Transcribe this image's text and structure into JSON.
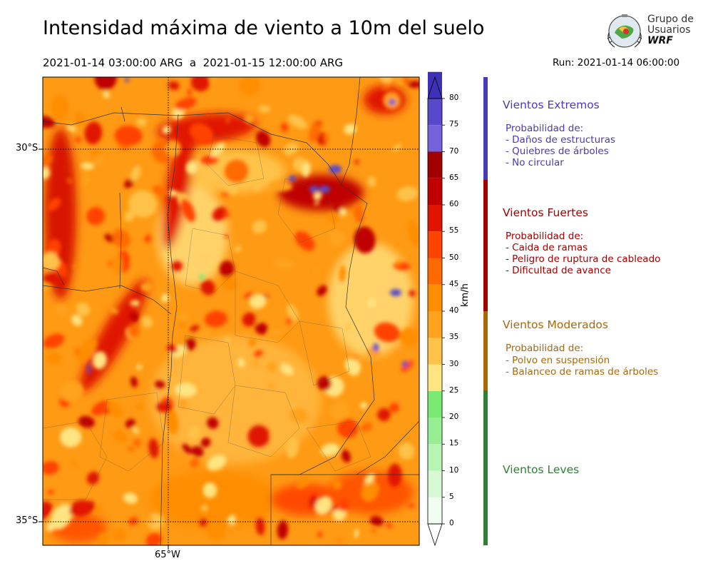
{
  "title": "Intensidad máxima de viento a 10m del suelo",
  "period": "2021-01-14 03:00:00 ARG  a  2021-01-15 12:00:00 ARG",
  "run": "Run: 2021-01-14 06:00:00",
  "logo": {
    "line1": "Grupo de",
    "line2": "Usuarios",
    "line3": "WRF"
  },
  "map": {
    "lat_labels": [
      "30°S",
      "35°S"
    ],
    "lon_labels": [
      "65°W"
    ]
  },
  "colorbar": {
    "unit": "km/h",
    "ticks": [
      "0",
      "5",
      "10",
      "15",
      "20",
      "25",
      "30",
      "35",
      "40",
      "45",
      "50",
      "55",
      "60",
      "65",
      "70",
      "75",
      "80"
    ],
    "colors": [
      "#f0fdf0",
      "#d6f9d4",
      "#b8f4b4",
      "#98ee92",
      "#7aea73",
      "#ffe482",
      "#ffc34a",
      "#ffa21e",
      "#ff8d00",
      "#ff6a00",
      "#ff4200",
      "#e01400",
      "#c00000",
      "#a00000",
      "#7561dc",
      "#5a48cc",
      "#3f30b8"
    ]
  },
  "categories": [
    {
      "title": "Vientos Extremos",
      "color": "#4b3ab8",
      "sub": "Probabilidad de:",
      "items": [
        "- Daños de estructuras",
        "- Quiebres de árboles",
        "- No circular"
      ]
    },
    {
      "title": "Vientos Fuertes",
      "color": "#a40000",
      "sub": "Probabilidad de:",
      "items": [
        "- Caida de ramas",
        "- Peligro de ruptura de cableado",
        "- Dificultad de avance"
      ]
    },
    {
      "title": "Vientos Moderados",
      "color": "#a8690a",
      "sub": "Probabilidad de:",
      "items": [
        "- Polvo en suspensión",
        "- Balanceo de ramas de árboles"
      ]
    },
    {
      "title": "Vientos Leves",
      "color": "#2f7f34",
      "sub": "",
      "items": []
    }
  ]
}
